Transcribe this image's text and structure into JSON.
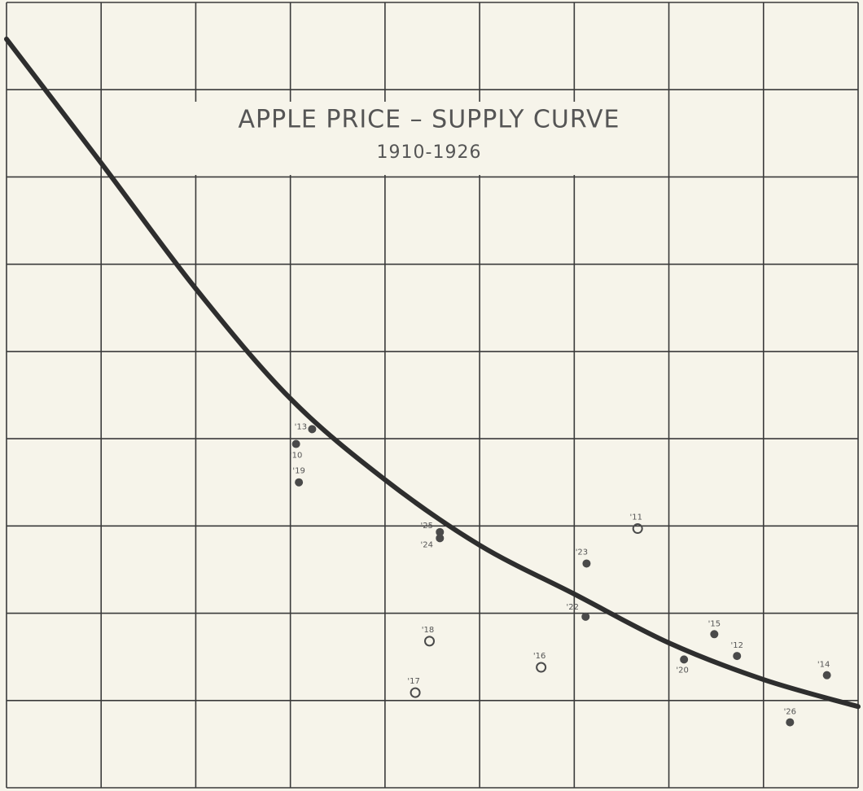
{
  "chart_data": {
    "type": "scatter",
    "title": "APPLE PRICE – SUPPLY CURVE",
    "subtitle": "1910-1926",
    "xlim": [
      0,
      9
    ],
    "ylim": [
      0,
      9
    ],
    "xticks": [
      0,
      1,
      2,
      3,
      4,
      5,
      6,
      7,
      8,
      9
    ],
    "yticks": [
      0,
      1,
      2,
      3,
      4,
      5,
      6,
      7,
      8,
      9
    ],
    "grid": true,
    "series": [
      {
        "marker": "filled",
        "color": "#4a4a4a",
        "labels": [
          "'13",
          "'10",
          "'19",
          "'25",
          "'24",
          "'23",
          "'22",
          "'15",
          "'12",
          "'20",
          "'14",
          "'26"
        ],
        "x": [
          3.23,
          3.06,
          3.09,
          4.58,
          4.58,
          6.13,
          6.12,
          7.48,
          7.72,
          7.16,
          8.67,
          8.28
        ],
        "values": [
          4.11,
          3.94,
          3.5,
          2.93,
          2.86,
          2.57,
          1.96,
          1.76,
          1.51,
          1.47,
          1.29,
          0.75
        ]
      },
      {
        "marker": "open",
        "color": "#4a4a4a",
        "labels": [
          "'11",
          "'18",
          "'16",
          "'17"
        ],
        "x": [
          6.67,
          4.47,
          5.65,
          4.32
        ],
        "values": [
          2.97,
          1.68,
          1.38,
          1.09
        ]
      }
    ],
    "curve": {
      "color": "#2e2e2e",
      "x": [
        0,
        1,
        2,
        3,
        4,
        5,
        6,
        7,
        8,
        9
      ],
      "values": [
        8.58,
        7.16,
        5.72,
        4.46,
        3.53,
        2.78,
        2.22,
        1.66,
        1.24,
        0.93
      ]
    }
  }
}
